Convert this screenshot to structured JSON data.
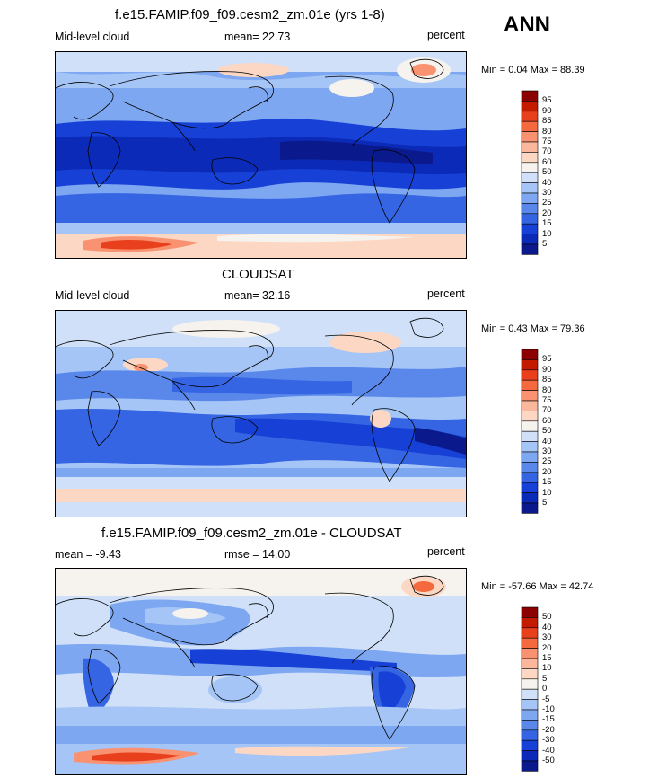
{
  "season": "ANN",
  "panels": [
    {
      "id": "model",
      "title": "f.e15.FAMIP.f09_f09.cesm2_zm.01e (yrs 1-8)",
      "left": "Mid-level cloud",
      "center": "mean=  22.73",
      "right": "percent",
      "minmax": "Min =   0.04 Max =  88.39",
      "levels": [
        "95",
        "90",
        "85",
        "80",
        "75",
        "70",
        "60",
        "50",
        "40",
        "30",
        "25",
        "20",
        "15",
        "10",
        "5"
      ],
      "colors": [
        "#8b0000",
        "#c41a00",
        "#e8401c",
        "#f5693e",
        "#f99270",
        "#fbb79b",
        "#fcd8c4",
        "#f6f3ee",
        "#cfe0f8",
        "#a5c5f6",
        "#7ea7f1",
        "#5a88ea",
        "#3565e3",
        "#1741d6",
        "#0c2ab8",
        "#0a1a8c"
      ]
    },
    {
      "id": "obs",
      "title": "CLOUDSAT",
      "left": "Mid-level cloud",
      "center": "mean=  32.16",
      "right": "percent",
      "minmax": "Min =   0.43 Max =  79.36",
      "levels": [
        "95",
        "90",
        "85",
        "80",
        "75",
        "70",
        "60",
        "50",
        "40",
        "30",
        "25",
        "20",
        "15",
        "10",
        "5"
      ],
      "colors": [
        "#8b0000",
        "#c41a00",
        "#e8401c",
        "#f5693e",
        "#f99270",
        "#fbb79b",
        "#fcd8c4",
        "#f6f3ee",
        "#cfe0f8",
        "#a5c5f6",
        "#7ea7f1",
        "#5a88ea",
        "#3565e3",
        "#1741d6",
        "#0c2ab8",
        "#0a1a8c"
      ]
    },
    {
      "id": "diff",
      "title": "f.e15.FAMIP.f09_f09.cesm2_zm.01e - CLOUDSAT",
      "left": "mean =  -9.43",
      "center": "rmse =  14.00",
      "right": "percent",
      "minmax": "Min = -57.66 Max =  42.74",
      "levels": [
        "50",
        "40",
        "30",
        "20",
        "15",
        "10",
        "5",
        "0",
        "-5",
        "-10",
        "-15",
        "-20",
        "-30",
        "-40",
        "-50"
      ],
      "colors": [
        "#8b0000",
        "#c41a00",
        "#e8401c",
        "#f5693e",
        "#f99270",
        "#fbb79b",
        "#fcd8c4",
        "#f6f3ee",
        "#cfe0f8",
        "#a5c5f6",
        "#7ea7f1",
        "#5a88ea",
        "#3565e3",
        "#1741d6",
        "#0c2ab8",
        "#0a1a8c"
      ]
    }
  ],
  "chart_data": [
    {
      "type": "heatmap",
      "title": "f.e15.FAMIP.f09_f09.cesm2_zm.01e (yrs 1-8)",
      "variable": "Mid-level cloud",
      "units": "percent",
      "mean": 22.73,
      "min": 0.04,
      "max": 88.39,
      "contour_levels": [
        5,
        10,
        15,
        20,
        25,
        30,
        40,
        50,
        60,
        70,
        75,
        80,
        85,
        90,
        95
      ]
    },
    {
      "type": "heatmap",
      "title": "CLOUDSAT",
      "variable": "Mid-level cloud",
      "units": "percent",
      "mean": 32.16,
      "min": 0.43,
      "max": 79.36,
      "contour_levels": [
        5,
        10,
        15,
        20,
        25,
        30,
        40,
        50,
        60,
        70,
        75,
        80,
        85,
        90,
        95
      ]
    },
    {
      "type": "heatmap",
      "title": "f.e15.FAMIP.f09_f09.cesm2_zm.01e - CLOUDSAT",
      "units": "percent",
      "mean": -9.43,
      "rmse": 14.0,
      "min": -57.66,
      "max": 42.74,
      "contour_levels": [
        -50,
        -40,
        -30,
        -20,
        -15,
        -10,
        -5,
        0,
        5,
        10,
        15,
        20,
        30,
        40,
        50
      ]
    }
  ]
}
